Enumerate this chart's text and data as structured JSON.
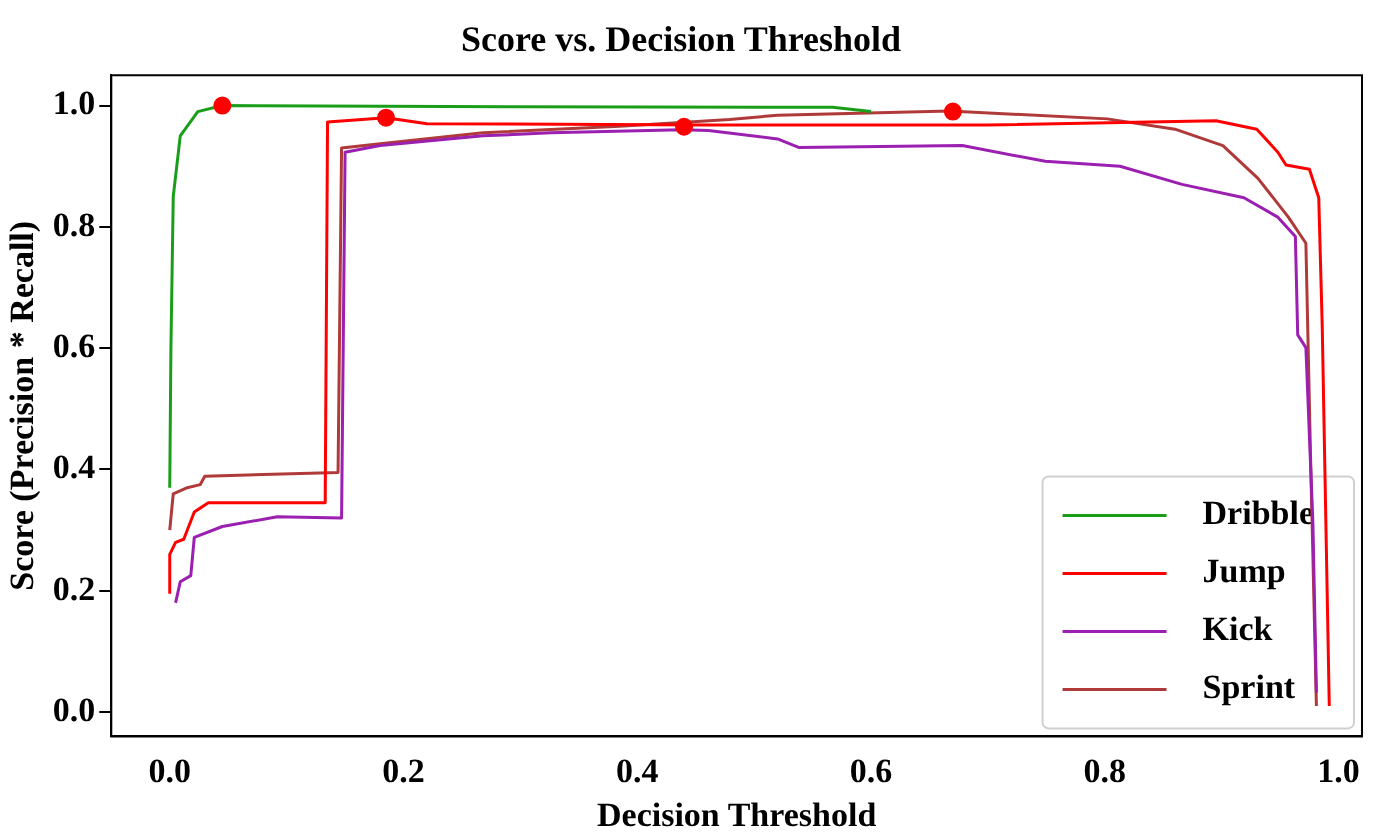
{
  "chart_data": {
    "type": "line",
    "title": "Score vs. Decision Threshold",
    "xlabel": "Decision Threshold",
    "ylabel": "Score (Precision * Recall)",
    "xlim": [
      -0.05,
      1.02
    ],
    "ylim": [
      -0.04,
      1.05
    ],
    "xticks": [
      {
        "value": 0,
        "label": "0.0"
      },
      0.2,
      0.4,
      0.6,
      0.8,
      {
        "value": 1,
        "label": "1.0"
      }
    ],
    "yticks": [
      {
        "value": 0,
        "label": "0.0"
      },
      0.2,
      0.4,
      0.6,
      0.8,
      {
        "value": 1,
        "label": "1.0"
      }
    ],
    "grid": false,
    "legend": "bottom right",
    "series": [
      {
        "name": "Dribble",
        "color": "#1a9e1a",
        "x": [
          0.0,
          0.001,
          0.003,
          0.009,
          0.024,
          0.045,
          0.3,
          0.567,
          0.6
        ],
        "values": [
          0.37,
          0.6,
          0.85,
          0.95,
          0.99,
          1.0,
          0.998,
          0.997,
          0.99
        ]
      },
      {
        "name": "Jump",
        "color": "#ff0000",
        "x": [
          0.0,
          0.0,
          0.005,
          0.012,
          0.021,
          0.033,
          0.133,
          0.135,
          0.185,
          0.22,
          0.461,
          0.7,
          0.895,
          0.93,
          0.948,
          0.955,
          0.975,
          0.983,
          0.986,
          0.992
        ],
        "values": [
          0.195,
          0.26,
          0.28,
          0.285,
          0.33,
          0.345,
          0.345,
          0.973,
          0.98,
          0.97,
          0.968,
          0.968,
          0.975,
          0.961,
          0.923,
          0.902,
          0.895,
          0.848,
          0.634,
          0.01
        ]
      },
      {
        "name": "Kick",
        "color": "#9b1fb0",
        "x": [
          0.005,
          0.009,
          0.018,
          0.021,
          0.045,
          0.092,
          0.147,
          0.15,
          0.18,
          0.268,
          0.326,
          0.438,
          0.461,
          0.52,
          0.538,
          0.678,
          0.749,
          0.813,
          0.866,
          0.919,
          0.948,
          0.963,
          0.965,
          0.972,
          0.978,
          0.981
        ],
        "values": [
          0.18,
          0.215,
          0.225,
          0.288,
          0.306,
          0.322,
          0.32,
          0.923,
          0.934,
          0.95,
          0.955,
          0.96,
          0.959,
          0.945,
          0.931,
          0.934,
          0.908,
          0.9,
          0.87,
          0.848,
          0.816,
          0.784,
          0.622,
          0.601,
          0.311,
          0.032
        ]
      },
      {
        "name": "Sprint",
        "color": "#b03a3a",
        "x": [
          0.0,
          0.003,
          0.015,
          0.026,
          0.03,
          0.144,
          0.147,
          0.18,
          0.268,
          0.385,
          0.479,
          0.52,
          0.667,
          0.802,
          0.86,
          0.901,
          0.931,
          0.957,
          0.972,
          0.976,
          0.981
        ],
        "values": [
          0.3,
          0.36,
          0.37,
          0.375,
          0.389,
          0.395,
          0.93,
          0.937,
          0.955,
          0.966,
          0.977,
          0.984,
          0.991,
          0.978,
          0.961,
          0.934,
          0.88,
          0.816,
          0.773,
          0.419,
          0.01
        ]
      },
      {
        "type": "scatter",
        "marker": "circle",
        "color": "#ff0000",
        "x": [
          0.045,
          0.185,
          0.44,
          0.67
        ],
        "values": [
          1.0,
          0.98,
          0.965,
          0.99
        ]
      }
    ]
  }
}
